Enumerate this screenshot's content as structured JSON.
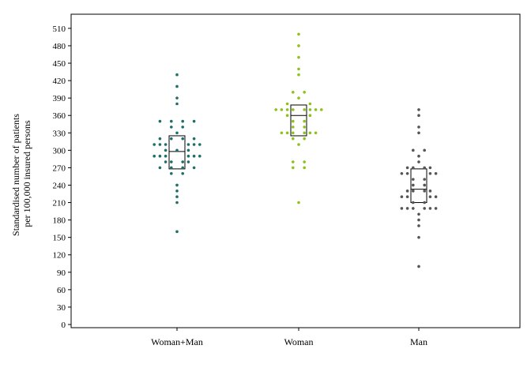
{
  "chart_data": {
    "type": "scatter",
    "subtype": "dot-plot-with-boxes",
    "title": "",
    "ylabel_lines": [
      "Standardised number of patients",
      "per 100,000 insured persons"
    ],
    "ylim": [
      0,
      525
    ],
    "yticks": [
      0,
      30,
      60,
      90,
      120,
      150,
      180,
      210,
      240,
      270,
      300,
      330,
      360,
      390,
      420,
      450,
      480,
      510
    ],
    "grid": false,
    "categories": [
      "Woman+Man",
      "Woman",
      "Man"
    ],
    "series": [
      {
        "category": "Woman+Man",
        "color": "#1e6e6a",
        "box": {
          "q1": 268,
          "median": 298,
          "q3": 325
        },
        "points": [
          [
            0,
            430
          ],
          [
            0,
            410
          ],
          [
            0,
            390
          ],
          [
            0,
            380
          ],
          [
            -3,
            350
          ],
          [
            -1,
            350
          ],
          [
            1,
            350
          ],
          [
            3,
            350
          ],
          [
            -1,
            340
          ],
          [
            1,
            340
          ],
          [
            0,
            330
          ],
          [
            -3,
            320
          ],
          [
            -1,
            320
          ],
          [
            1,
            320
          ],
          [
            3,
            320
          ],
          [
            -4,
            310
          ],
          [
            -3,
            310
          ],
          [
            -2,
            310
          ],
          [
            2,
            310
          ],
          [
            3,
            310
          ],
          [
            4,
            310
          ],
          [
            -2,
            300
          ],
          [
            0,
            300
          ],
          [
            2,
            300
          ],
          [
            -4,
            290
          ],
          [
            -3,
            290
          ],
          [
            -2,
            290
          ],
          [
            2,
            290
          ],
          [
            3,
            290
          ],
          [
            4,
            290
          ],
          [
            -2,
            280
          ],
          [
            -1,
            280
          ],
          [
            1,
            280
          ],
          [
            2,
            280
          ],
          [
            -3,
            270
          ],
          [
            -1,
            270
          ],
          [
            1,
            270
          ],
          [
            3,
            270
          ],
          [
            -1,
            260
          ],
          [
            1,
            260
          ],
          [
            0,
            240
          ],
          [
            0,
            230
          ],
          [
            0,
            220
          ],
          [
            0,
            210
          ],
          [
            0,
            160
          ]
        ]
      },
      {
        "category": "Woman",
        "color": "#8cc21a",
        "box": {
          "q1": 325,
          "median": 360,
          "q3": 378
        },
        "points": [
          [
            0,
            500
          ],
          [
            0,
            480
          ],
          [
            0,
            460
          ],
          [
            0,
            440
          ],
          [
            0,
            430
          ],
          [
            -1,
            400
          ],
          [
            1,
            400
          ],
          [
            0,
            390
          ],
          [
            -2,
            380
          ],
          [
            2,
            380
          ],
          [
            -4,
            370
          ],
          [
            -3,
            370
          ],
          [
            -2,
            370
          ],
          [
            -1,
            370
          ],
          [
            1,
            370
          ],
          [
            2,
            370
          ],
          [
            3,
            370
          ],
          [
            4,
            370
          ],
          [
            -2,
            360
          ],
          [
            2,
            360
          ],
          [
            -1,
            350
          ],
          [
            1,
            350
          ],
          [
            -1,
            340
          ],
          [
            1,
            340
          ],
          [
            -3,
            330
          ],
          [
            -2,
            330
          ],
          [
            -1,
            330
          ],
          [
            1,
            330
          ],
          [
            2,
            330
          ],
          [
            3,
            330
          ],
          [
            -1,
            320
          ],
          [
            1,
            320
          ],
          [
            0,
            310
          ],
          [
            -1,
            280
          ],
          [
            1,
            280
          ],
          [
            -1,
            270
          ],
          [
            1,
            270
          ],
          [
            0,
            210
          ]
        ]
      },
      {
        "category": "Man",
        "color": "#555555",
        "box": {
          "q1": 210,
          "median": 233,
          "q3": 268
        },
        "points": [
          [
            0,
            370
          ],
          [
            0,
            360
          ],
          [
            0,
            340
          ],
          [
            0,
            330
          ],
          [
            -1,
            300
          ],
          [
            1,
            300
          ],
          [
            0,
            290
          ],
          [
            0,
            280
          ],
          [
            -2,
            270
          ],
          [
            -1,
            270
          ],
          [
            1,
            270
          ],
          [
            2,
            270
          ],
          [
            -3,
            260
          ],
          [
            -2,
            260
          ],
          [
            2,
            260
          ],
          [
            3,
            260
          ],
          [
            -1,
            250
          ],
          [
            1,
            250
          ],
          [
            -1,
            240
          ],
          [
            1,
            240
          ],
          [
            -2,
            230
          ],
          [
            -1,
            230
          ],
          [
            1,
            230
          ],
          [
            2,
            230
          ],
          [
            -3,
            220
          ],
          [
            -2,
            220
          ],
          [
            2,
            220
          ],
          [
            3,
            220
          ],
          [
            -1,
            210
          ],
          [
            1,
            210
          ],
          [
            -3,
            200
          ],
          [
            -2,
            200
          ],
          [
            -1,
            200
          ],
          [
            1,
            200
          ],
          [
            2,
            200
          ],
          [
            3,
            200
          ],
          [
            0,
            190
          ],
          [
            0,
            180
          ],
          [
            0,
            170
          ],
          [
            0,
            150
          ],
          [
            0,
            100
          ]
        ]
      }
    ]
  }
}
